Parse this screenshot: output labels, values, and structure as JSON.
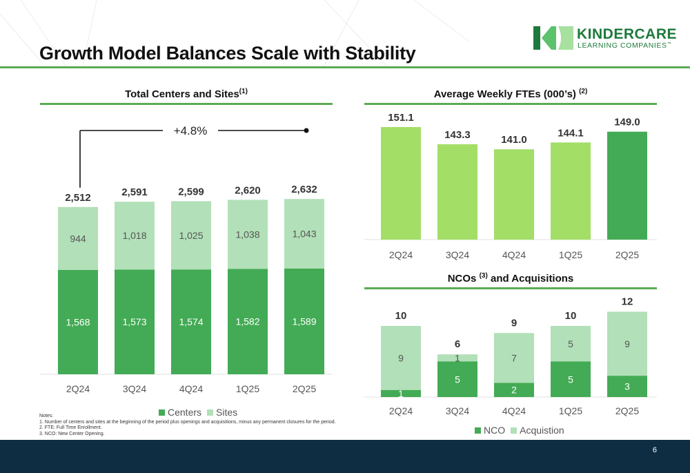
{
  "slide": {
    "title": "Growth Model Balances Scale with Stability",
    "page_number": "6",
    "notes": {
      "heading": "Notes:",
      "items": [
        "1. Number of centers and sites at the beginning of the period plus openings and acquisitions, minus any permanent closures for the period.",
        "2. FTE: Full Time Enrollment.",
        "3. NCO: New Center Opening."
      ]
    }
  },
  "logo": {
    "name": "KINDERCARE",
    "tagline": "LEARNING COMPANIES",
    "trademark": "™",
    "colors": [
      "#1e7a3c",
      "#5cc26b",
      "#a8e0a0"
    ]
  },
  "colors": {
    "dark_green": "#43ab55",
    "light_green": "#b2e0b8",
    "lime": "#a3de67",
    "rule": "#5aab54",
    "footer": "#0f2d42"
  },
  "chart_data": [
    {
      "id": "centers",
      "type": "bar",
      "stacked": true,
      "title_main": "Total Centers and Sites",
      "title_sup": "(1)",
      "categories": [
        "2Q24",
        "3Q24",
        "4Q24",
        "1Q25",
        "2Q25"
      ],
      "series": [
        {
          "name": "Centers",
          "values": [
            1568,
            1573,
            1574,
            1582,
            1589
          ],
          "color": "#43ab55"
        },
        {
          "name": "Sites",
          "values": [
            944,
            1018,
            1025,
            1038,
            1043
          ],
          "color": "#b2e0b8"
        }
      ],
      "totals": [
        2512,
        2591,
        2599,
        2620,
        2632
      ],
      "annotation": "+4.8%",
      "legend_position": "bottom",
      "ylim": [
        0,
        2800
      ]
    },
    {
      "id": "ftes",
      "type": "bar",
      "title_main": "Average Weekly FTEs (000’s)",
      "title_sup": "(2)",
      "categories": [
        "2Q24",
        "3Q24",
        "4Q24",
        "1Q25",
        "2Q25"
      ],
      "values": [
        151.1,
        143.3,
        141.0,
        144.1,
        149.0
      ],
      "colors": [
        "#a3de67",
        "#a3de67",
        "#a3de67",
        "#a3de67",
        "#43ab55"
      ]
    },
    {
      "id": "nco",
      "type": "bar",
      "stacked": true,
      "title_main": "NCOs",
      "title_sup": "(3)",
      "title_rest": "and Acquisitions",
      "categories": [
        "2Q24",
        "3Q24",
        "4Q24",
        "1Q25",
        "2Q25"
      ],
      "series": [
        {
          "name": "NCO",
          "values": [
            1,
            5,
            2,
            5,
            3
          ],
          "color": "#43ab55"
        },
        {
          "name": "Acquistion",
          "values": [
            9,
            1,
            7,
            5,
            9
          ],
          "color": "#b2e0b8"
        }
      ],
      "totals": [
        10,
        6,
        9,
        10,
        12
      ],
      "legend_position": "bottom",
      "ylim": [
        0,
        13
      ]
    }
  ]
}
